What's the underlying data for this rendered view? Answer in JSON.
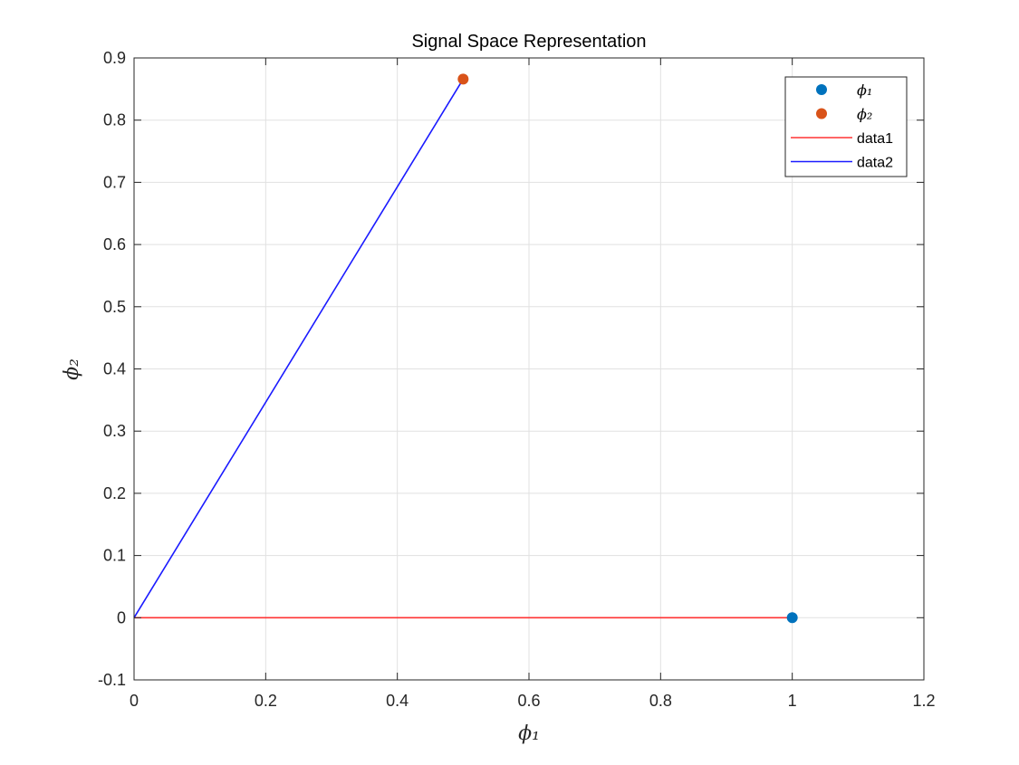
{
  "chart_data": {
    "type": "scatter",
    "title": "Signal Space Representation",
    "xlabel": "ϕ₁",
    "ylabel": "ϕ₂",
    "xlim": [
      0,
      1.2
    ],
    "ylim": [
      -0.1,
      0.9
    ],
    "xticks": [
      0,
      0.2,
      0.4,
      0.6,
      0.8,
      1,
      1.2
    ],
    "xtick_labels": [
      "0",
      "0.2",
      "0.4",
      "0.6",
      "0.8",
      "1",
      "1.2"
    ],
    "yticks": [
      -0.1,
      0,
      0.1,
      0.2,
      0.3,
      0.4,
      0.5,
      0.6,
      0.7,
      0.8,
      0.9
    ],
    "ytick_labels": [
      "-0.1",
      "0",
      "0.1",
      "0.2",
      "0.3",
      "0.4",
      "0.5",
      "0.6",
      "0.7",
      "0.8",
      "0.9"
    ],
    "grid": true,
    "legend_position": "top-right",
    "series": [
      {
        "name": "ϕ₁",
        "kind": "point",
        "x": [
          1
        ],
        "y": [
          0
        ],
        "color": "#0072BD"
      },
      {
        "name": "ϕ₂",
        "kind": "point",
        "x": [
          0.5
        ],
        "y": [
          0.866
        ],
        "color": "#D95319"
      },
      {
        "name": "data1",
        "kind": "line",
        "x": [
          0,
          1
        ],
        "y": [
          0,
          0
        ],
        "color": "#ff3333"
      },
      {
        "name": "data2",
        "kind": "line",
        "x": [
          0,
          0.5
        ],
        "y": [
          0,
          0.866
        ],
        "color": "#1a1aff"
      }
    ]
  }
}
